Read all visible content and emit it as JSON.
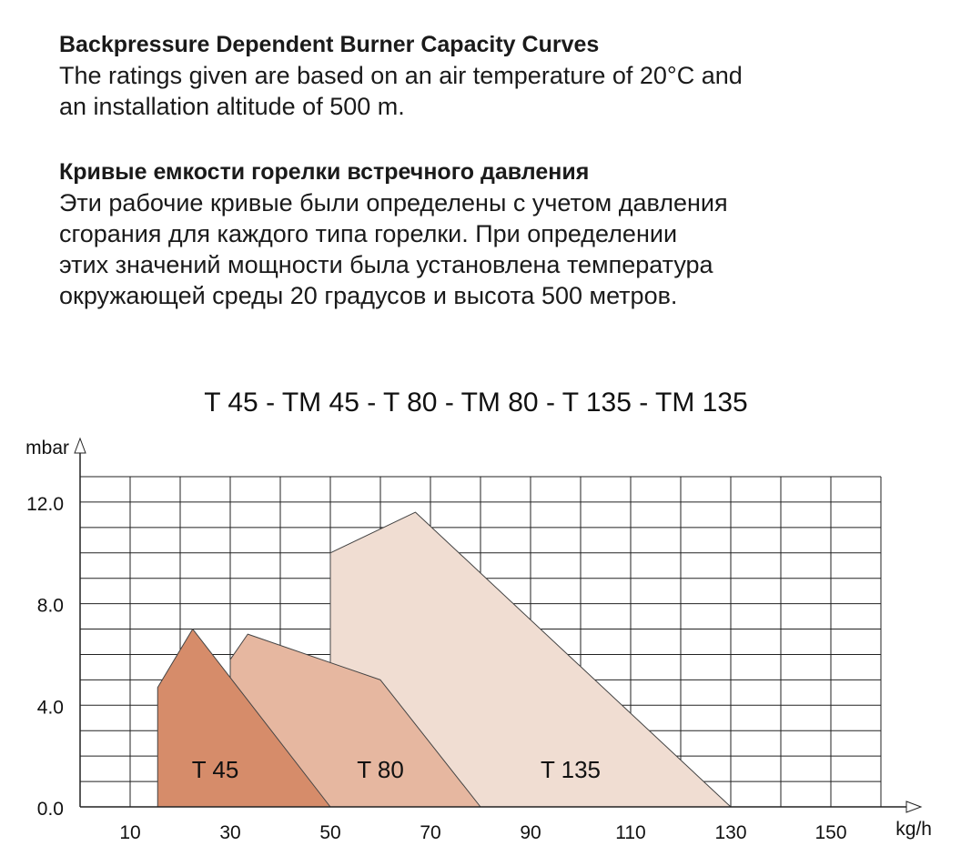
{
  "intro": {
    "en": {
      "heading": "Backpressure Dependent Burner Capacity Curves",
      "lines": [
        "The ratings given are based on an air temperature of 20°C and",
        "an installation altitude of 500 m."
      ]
    },
    "ru": {
      "heading": "Кривые емкости горелки встречного давления",
      "lines": [
        "Эти рабочие кривые были определены с учетом давления",
        "сгорания для каждого типа горелки. При определении",
        "этих значений мощности была установлена температура",
        "окружающей среды 20 градусов и высота 500 метров."
      ]
    }
  },
  "chart_data": {
    "type": "area",
    "title": "T 45 - TM 45 - T 80 - TM 80 - T 135 - TM 135",
    "xlabel": "kg/h",
    "ylabel": "mbar",
    "xlim": [
      0,
      160
    ],
    "ylim": [
      0,
      13
    ],
    "x_ticks": [
      "10",
      "30",
      "50",
      "70",
      "90",
      "110",
      "130",
      "150"
    ],
    "y_ticks": [
      "0.0",
      "4.0",
      "8.0",
      "12.0"
    ],
    "grid": true,
    "series": [
      {
        "name": "T 135",
        "color": "#f0ddd2",
        "points": [
          [
            50,
            0
          ],
          [
            50,
            10.0
          ],
          [
            67,
            11.6
          ],
          [
            130,
            0
          ]
        ]
      },
      {
        "name": "T 80",
        "color": "#e6b7a0",
        "points": [
          [
            30,
            0
          ],
          [
            30,
            5.8
          ],
          [
            33.5,
            6.8
          ],
          [
            60,
            5.0
          ],
          [
            80,
            0
          ]
        ]
      },
      {
        "name": "T 45",
        "color": "#d68c6a",
        "points": [
          [
            15.5,
            0
          ],
          [
            15.5,
            4.7
          ],
          [
            22.5,
            7.0
          ],
          [
            50,
            0
          ]
        ]
      }
    ],
    "annotations": [
      {
        "text": "T 45",
        "x": 27,
        "y": 1.5
      },
      {
        "text": "T 80",
        "x": 60,
        "y": 1.5
      },
      {
        "text": "T 135",
        "x": 98,
        "y": 1.5
      }
    ]
  }
}
